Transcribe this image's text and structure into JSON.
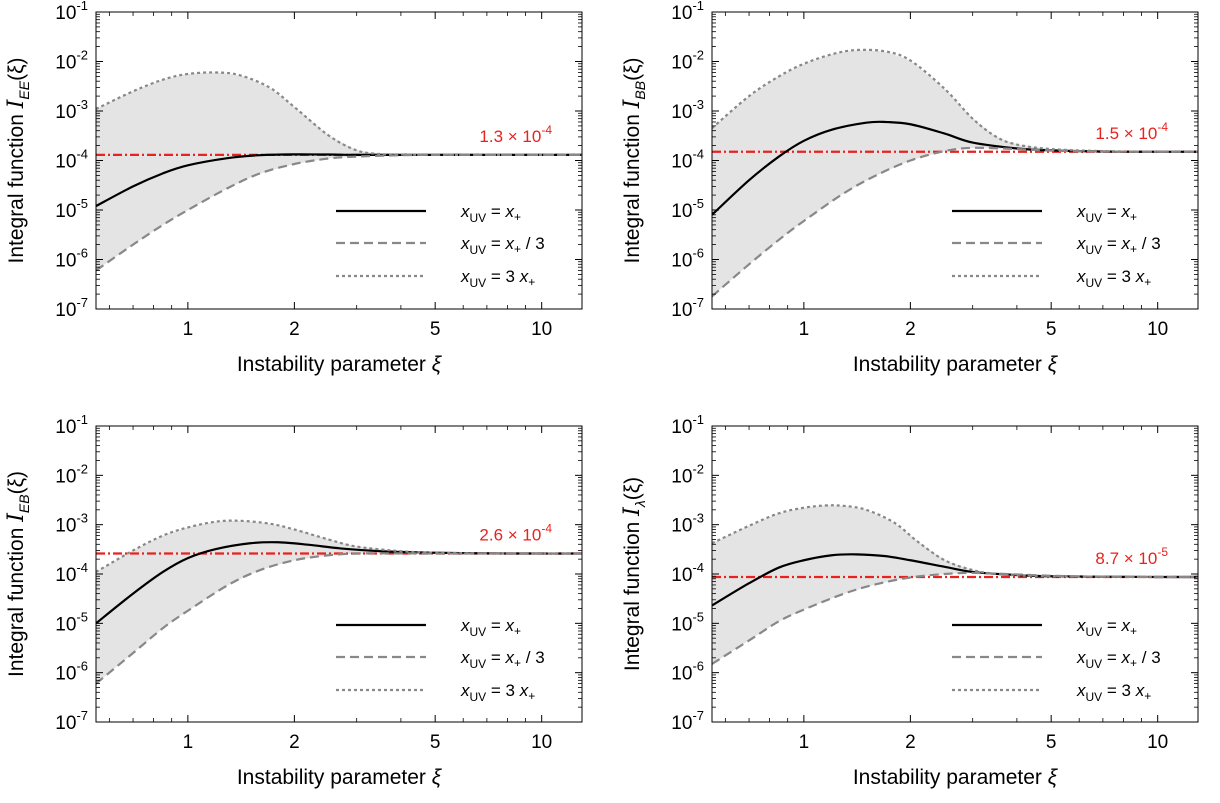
{
  "chart_data": [
    {
      "type": "line",
      "scale": {
        "x": "log",
        "y": "log"
      },
      "xlim": [
        0.55,
        13
      ],
      "ylim": [
        1e-07,
        0.1
      ],
      "xticks": [
        1,
        2,
        5,
        10
      ],
      "xtick_labels": [
        "1",
        "2",
        "5",
        "10"
      ],
      "yticks": [
        1e-07,
        1e-06,
        1e-05,
        0.0001,
        0.001,
        0.01,
        0.1
      ],
      "ytick_labels": [
        {
          "base": "10",
          "exp": "-7"
        },
        {
          "base": "10",
          "exp": "-6"
        },
        {
          "base": "10",
          "exp": "-5"
        },
        {
          "base": "10",
          "exp": "-4"
        },
        {
          "base": "10",
          "exp": "-3"
        },
        {
          "base": "10",
          "exp": "-2"
        },
        {
          "base": "10",
          "exp": "-1"
        }
      ],
      "xlabel": "Instability parameter",
      "xlabel_symbol": "ξ",
      "ylabel": "Integral function",
      "ylabel_symbol": "I",
      "ylabel_sub": "EE",
      "ylabel_arg": "(ξ)",
      "reference": {
        "value": 0.00013,
        "mantissa": "1.3",
        "times": "×",
        "base": "10",
        "exp": "-4",
        "color": "#e8221e"
      },
      "legend_position": "lower-right",
      "band_fill": "#e4e4e4",
      "series": [
        {
          "name_var": "x",
          "name_sub": "UV",
          "name_eq": " = ",
          "name_rhs_var": "x",
          "name_rhs_sub": "+",
          "name_rhs_tail": "",
          "style": "solid",
          "color": "#000000",
          "x": [
            0.55,
            0.7,
            0.85,
            1,
            1.3,
            1.6,
            2,
            2.5,
            3,
            4,
            5,
            7,
            10,
            13
          ],
          "y": [
            1.2e-05,
            3e-05,
            5.5e-05,
            8e-05,
            0.000112,
            0.000128,
            0.000133,
            0.000132,
            0.00013,
            0.00013,
            0.00013,
            0.00013,
            0.00013,
            0.00013
          ]
        },
        {
          "name_var": "x",
          "name_sub": "UV",
          "name_eq": " = ",
          "name_rhs_var": "x",
          "name_rhs_sub": "+",
          "name_rhs_tail": " / 3",
          "style": "dashed",
          "color": "#888888",
          "x": [
            0.55,
            0.7,
            0.85,
            1,
            1.3,
            1.6,
            2,
            2.5,
            3,
            4,
            5,
            7,
            10,
            13
          ],
          "y": [
            6e-07,
            2e-06,
            5e-06,
            1e-05,
            2.8e-05,
            5.5e-05,
            8.5e-05,
            0.00011,
            0.00012,
            0.000128,
            0.00013,
            0.00013,
            0.00013,
            0.00013
          ]
        },
        {
          "name_var": "x",
          "name_sub": "UV",
          "name_eq": " = 3 ",
          "name_rhs_var": "x",
          "name_rhs_sub": "+",
          "name_rhs_tail": "",
          "style": "dotted",
          "color": "#888888",
          "x": [
            0.55,
            0.7,
            0.85,
            1,
            1.2,
            1.4,
            1.7,
            2,
            2.5,
            3,
            3.5,
            4,
            5,
            7,
            10,
            13
          ],
          "y": [
            0.0011,
            0.0025,
            0.0043,
            0.0056,
            0.006,
            0.0053,
            0.003,
            0.0012,
            0.00032,
            0.00016,
            0.000135,
            0.000132,
            0.00013,
            0.00013,
            0.00013,
            0.00013
          ]
        }
      ]
    },
    {
      "type": "line",
      "scale": {
        "x": "log",
        "y": "log"
      },
      "xlim": [
        0.55,
        13
      ],
      "ylim": [
        1e-07,
        0.1
      ],
      "xticks": [
        1,
        2,
        5,
        10
      ],
      "xtick_labels": [
        "1",
        "2",
        "5",
        "10"
      ],
      "yticks": [
        1e-07,
        1e-06,
        1e-05,
        0.0001,
        0.001,
        0.01,
        0.1
      ],
      "ytick_labels": [
        {
          "base": "10",
          "exp": "-7"
        },
        {
          "base": "10",
          "exp": "-6"
        },
        {
          "base": "10",
          "exp": "-5"
        },
        {
          "base": "10",
          "exp": "-4"
        },
        {
          "base": "10",
          "exp": "-3"
        },
        {
          "base": "10",
          "exp": "-2"
        },
        {
          "base": "10",
          "exp": "-1"
        }
      ],
      "xlabel": "Instability parameter",
      "xlabel_symbol": "ξ",
      "ylabel": "Integral function",
      "ylabel_symbol": "I",
      "ylabel_sub": "BB",
      "ylabel_arg": "(ξ)",
      "reference": {
        "value": 0.00015,
        "mantissa": "1.5",
        "times": "×",
        "base": "10",
        "exp": "-4",
        "color": "#e8221e"
      },
      "legend_position": "lower-right",
      "band_fill": "#e4e4e4",
      "series": [
        {
          "name_var": "x",
          "name_sub": "UV",
          "name_eq": " = ",
          "name_rhs_var": "x",
          "name_rhs_sub": "+",
          "name_rhs_tail": "",
          "style": "solid",
          "color": "#000000",
          "x": [
            0.55,
            0.7,
            0.85,
            1,
            1.2,
            1.5,
            1.7,
            2,
            2.5,
            3,
            4,
            5,
            7,
            10,
            13
          ],
          "y": [
            8e-06,
            4e-05,
            0.00012,
            0.00025,
            0.00042,
            0.00058,
            0.0006,
            0.00054,
            0.00035,
            0.00023,
            0.000175,
            0.00016,
            0.000152,
            0.00015,
            0.00015
          ]
        },
        {
          "name_var": "x",
          "name_sub": "UV",
          "name_eq": " = ",
          "name_rhs_var": "x",
          "name_rhs_sub": "+",
          "name_rhs_tail": " / 3",
          "style": "dashed",
          "color": "#888888",
          "x": [
            0.55,
            0.7,
            0.85,
            1,
            1.3,
            1.6,
            2,
            2.5,
            3,
            4,
            5,
            7,
            10,
            13
          ],
          "y": [
            1.8e-07,
            8e-07,
            2.5e-06,
            6e-06,
            2.2e-05,
            5e-05,
            0.0001,
            0.000155,
            0.00018,
            0.00017,
            0.000158,
            0.000152,
            0.00015,
            0.00015
          ]
        },
        {
          "name_var": "x",
          "name_sub": "UV",
          "name_eq": " = 3 ",
          "name_rhs_var": "x",
          "name_rhs_sub": "+",
          "name_rhs_tail": "",
          "style": "dotted",
          "color": "#888888",
          "x": [
            0.55,
            0.7,
            0.85,
            1,
            1.2,
            1.4,
            1.7,
            2,
            2.5,
            3,
            3.5,
            4,
            5,
            7,
            10,
            13
          ],
          "y": [
            0.00045,
            0.002,
            0.005,
            0.009,
            0.014,
            0.017,
            0.016,
            0.0105,
            0.0028,
            0.0007,
            0.0003,
            0.00021,
            0.00017,
            0.000155,
            0.00015,
            0.00015
          ]
        }
      ]
    },
    {
      "type": "line",
      "scale": {
        "x": "log",
        "y": "log"
      },
      "xlim": [
        0.55,
        13
      ],
      "ylim": [
        1e-07,
        0.1
      ],
      "xticks": [
        1,
        2,
        5,
        10
      ],
      "xtick_labels": [
        "1",
        "2",
        "5",
        "10"
      ],
      "yticks": [
        1e-07,
        1e-06,
        1e-05,
        0.0001,
        0.001,
        0.01,
        0.1
      ],
      "ytick_labels": [
        {
          "base": "10",
          "exp": "-7"
        },
        {
          "base": "10",
          "exp": "-6"
        },
        {
          "base": "10",
          "exp": "-5"
        },
        {
          "base": "10",
          "exp": "-4"
        },
        {
          "base": "10",
          "exp": "-3"
        },
        {
          "base": "10",
          "exp": "-2"
        },
        {
          "base": "10",
          "exp": "-1"
        }
      ],
      "xlabel": "Instability parameter",
      "xlabel_symbol": "ξ",
      "ylabel": "Integral function",
      "ylabel_symbol": "I",
      "ylabel_sub": "EB",
      "ylabel_arg": "(ξ)",
      "reference": {
        "value": 0.00026,
        "mantissa": "2.6",
        "times": "×",
        "base": "10",
        "exp": "-4",
        "color": "#e8221e"
      },
      "legend_position": "lower-right",
      "band_fill": "#e4e4e4",
      "series": [
        {
          "name_var": "x",
          "name_sub": "UV",
          "name_eq": " = ",
          "name_rhs_var": "x",
          "name_rhs_sub": "+",
          "name_rhs_tail": "",
          "style": "solid",
          "color": "#000000",
          "x": [
            0.55,
            0.7,
            0.85,
            1,
            1.2,
            1.5,
            1.8,
            2.2,
            2.7,
            3.5,
            5,
            7,
            10,
            13
          ],
          "y": [
            1e-05,
            4e-05,
            0.00011,
            0.00021,
            0.00032,
            0.00042,
            0.00044,
            0.00039,
            0.00033,
            0.00029,
            0.00027,
            0.000262,
            0.00026,
            0.00026
          ]
        },
        {
          "name_var": "x",
          "name_sub": "UV",
          "name_eq": " = ",
          "name_rhs_var": "x",
          "name_rhs_sub": "+",
          "name_rhs_tail": " / 3",
          "style": "dashed",
          "color": "#888888",
          "x": [
            0.55,
            0.7,
            0.85,
            1,
            1.3,
            1.6,
            2,
            2.5,
            3,
            4,
            5,
            7,
            10,
            13
          ],
          "y": [
            6e-07,
            2.5e-06,
            8e-06,
            1.8e-05,
            6e-05,
            0.00012,
            0.00019,
            0.00024,
            0.00026,
            0.000262,
            0.00026,
            0.00026,
            0.00026,
            0.00026
          ]
        },
        {
          "name_var": "x",
          "name_sub": "UV",
          "name_eq": " = 3 ",
          "name_rhs_var": "x",
          "name_rhs_sub": "+",
          "name_rhs_tail": "",
          "style": "dotted",
          "color": "#888888",
          "x": [
            0.55,
            0.7,
            0.85,
            1,
            1.2,
            1.4,
            1.7,
            2,
            2.5,
            3,
            4,
            5,
            7,
            10,
            13
          ],
          "y": [
            0.00011,
            0.0003,
            0.0006,
            0.00088,
            0.00115,
            0.0012,
            0.00105,
            0.0008,
            0.0005,
            0.00036,
            0.00029,
            0.00027,
            0.000262,
            0.00026,
            0.00026
          ]
        }
      ]
    },
    {
      "type": "line",
      "scale": {
        "x": "log",
        "y": "log"
      },
      "xlim": [
        0.55,
        13
      ],
      "ylim": [
        1e-07,
        0.1
      ],
      "xticks": [
        1,
        2,
        5,
        10
      ],
      "xtick_labels": [
        "1",
        "2",
        "5",
        "10"
      ],
      "yticks": [
        1e-07,
        1e-06,
        1e-05,
        0.0001,
        0.001,
        0.01,
        0.1
      ],
      "ytick_labels": [
        {
          "base": "10",
          "exp": "-7"
        },
        {
          "base": "10",
          "exp": "-6"
        },
        {
          "base": "10",
          "exp": "-5"
        },
        {
          "base": "10",
          "exp": "-4"
        },
        {
          "base": "10",
          "exp": "-3"
        },
        {
          "base": "10",
          "exp": "-2"
        },
        {
          "base": "10",
          "exp": "-1"
        }
      ],
      "xlabel": "Instability parameter",
      "xlabel_symbol": "ξ",
      "ylabel": "Integral function",
      "ylabel_symbol": "I",
      "ylabel_sub": "λ",
      "ylabel_arg": "(ξ)",
      "reference": {
        "value": 8.7e-05,
        "mantissa": "8.7",
        "times": "×",
        "base": "10",
        "exp": "-5",
        "color": "#e8221e"
      },
      "legend_position": "lower-right",
      "band_fill": "#e4e4e4",
      "series": [
        {
          "name_var": "x",
          "name_sub": "UV",
          "name_eq": " = ",
          "name_rhs_var": "x",
          "name_rhs_sub": "+",
          "name_rhs_tail": "",
          "style": "solid",
          "color": "#000000",
          "x": [
            0.55,
            0.7,
            0.85,
            1,
            1.2,
            1.4,
            1.7,
            2,
            2.5,
            3,
            4,
            5,
            7,
            10,
            13
          ],
          "y": [
            2.3e-05,
            6.5e-05,
            0.000135,
            0.00019,
            0.00024,
            0.00025,
            0.00023,
            0.00019,
            0.00014,
            0.00011,
            9.5e-05,
            9e-05,
            8.8e-05,
            8.7e-05,
            8.7e-05
          ]
        },
        {
          "name_var": "x",
          "name_sub": "UV",
          "name_eq": " = ",
          "name_rhs_var": "x",
          "name_rhs_sub": "+",
          "name_rhs_tail": " / 3",
          "style": "dashed",
          "color": "#888888",
          "x": [
            0.55,
            0.7,
            0.85,
            1,
            1.3,
            1.6,
            2,
            2.5,
            3,
            4,
            5,
            7,
            10,
            13
          ],
          "y": [
            1.5e-06,
            4.5e-06,
            1.1e-05,
            1.9e-05,
            4e-05,
            6.2e-05,
            8.5e-05,
            0.0001,
            0.000105,
            9.8e-05,
            9.2e-05,
            8.8e-05,
            8.7e-05,
            8.7e-05
          ]
        },
        {
          "name_var": "x",
          "name_sub": "UV",
          "name_eq": " = 3 ",
          "name_rhs_var": "x",
          "name_rhs_sub": "+",
          "name_rhs_tail": "",
          "style": "dotted",
          "color": "#888888",
          "x": [
            0.55,
            0.7,
            0.85,
            1,
            1.15,
            1.3,
            1.5,
            1.8,
            2.1,
            2.5,
            3,
            3.5,
            4,
            5,
            7,
            10,
            13
          ],
          "y": [
            0.00042,
            0.00095,
            0.0017,
            0.0022,
            0.00245,
            0.0024,
            0.002,
            0.0011,
            0.00045,
            0.00019,
            0.00012,
            0.0001,
            9.4e-05,
            9e-05,
            8.8e-05,
            8.7e-05,
            8.7e-05
          ]
        }
      ]
    }
  ]
}
